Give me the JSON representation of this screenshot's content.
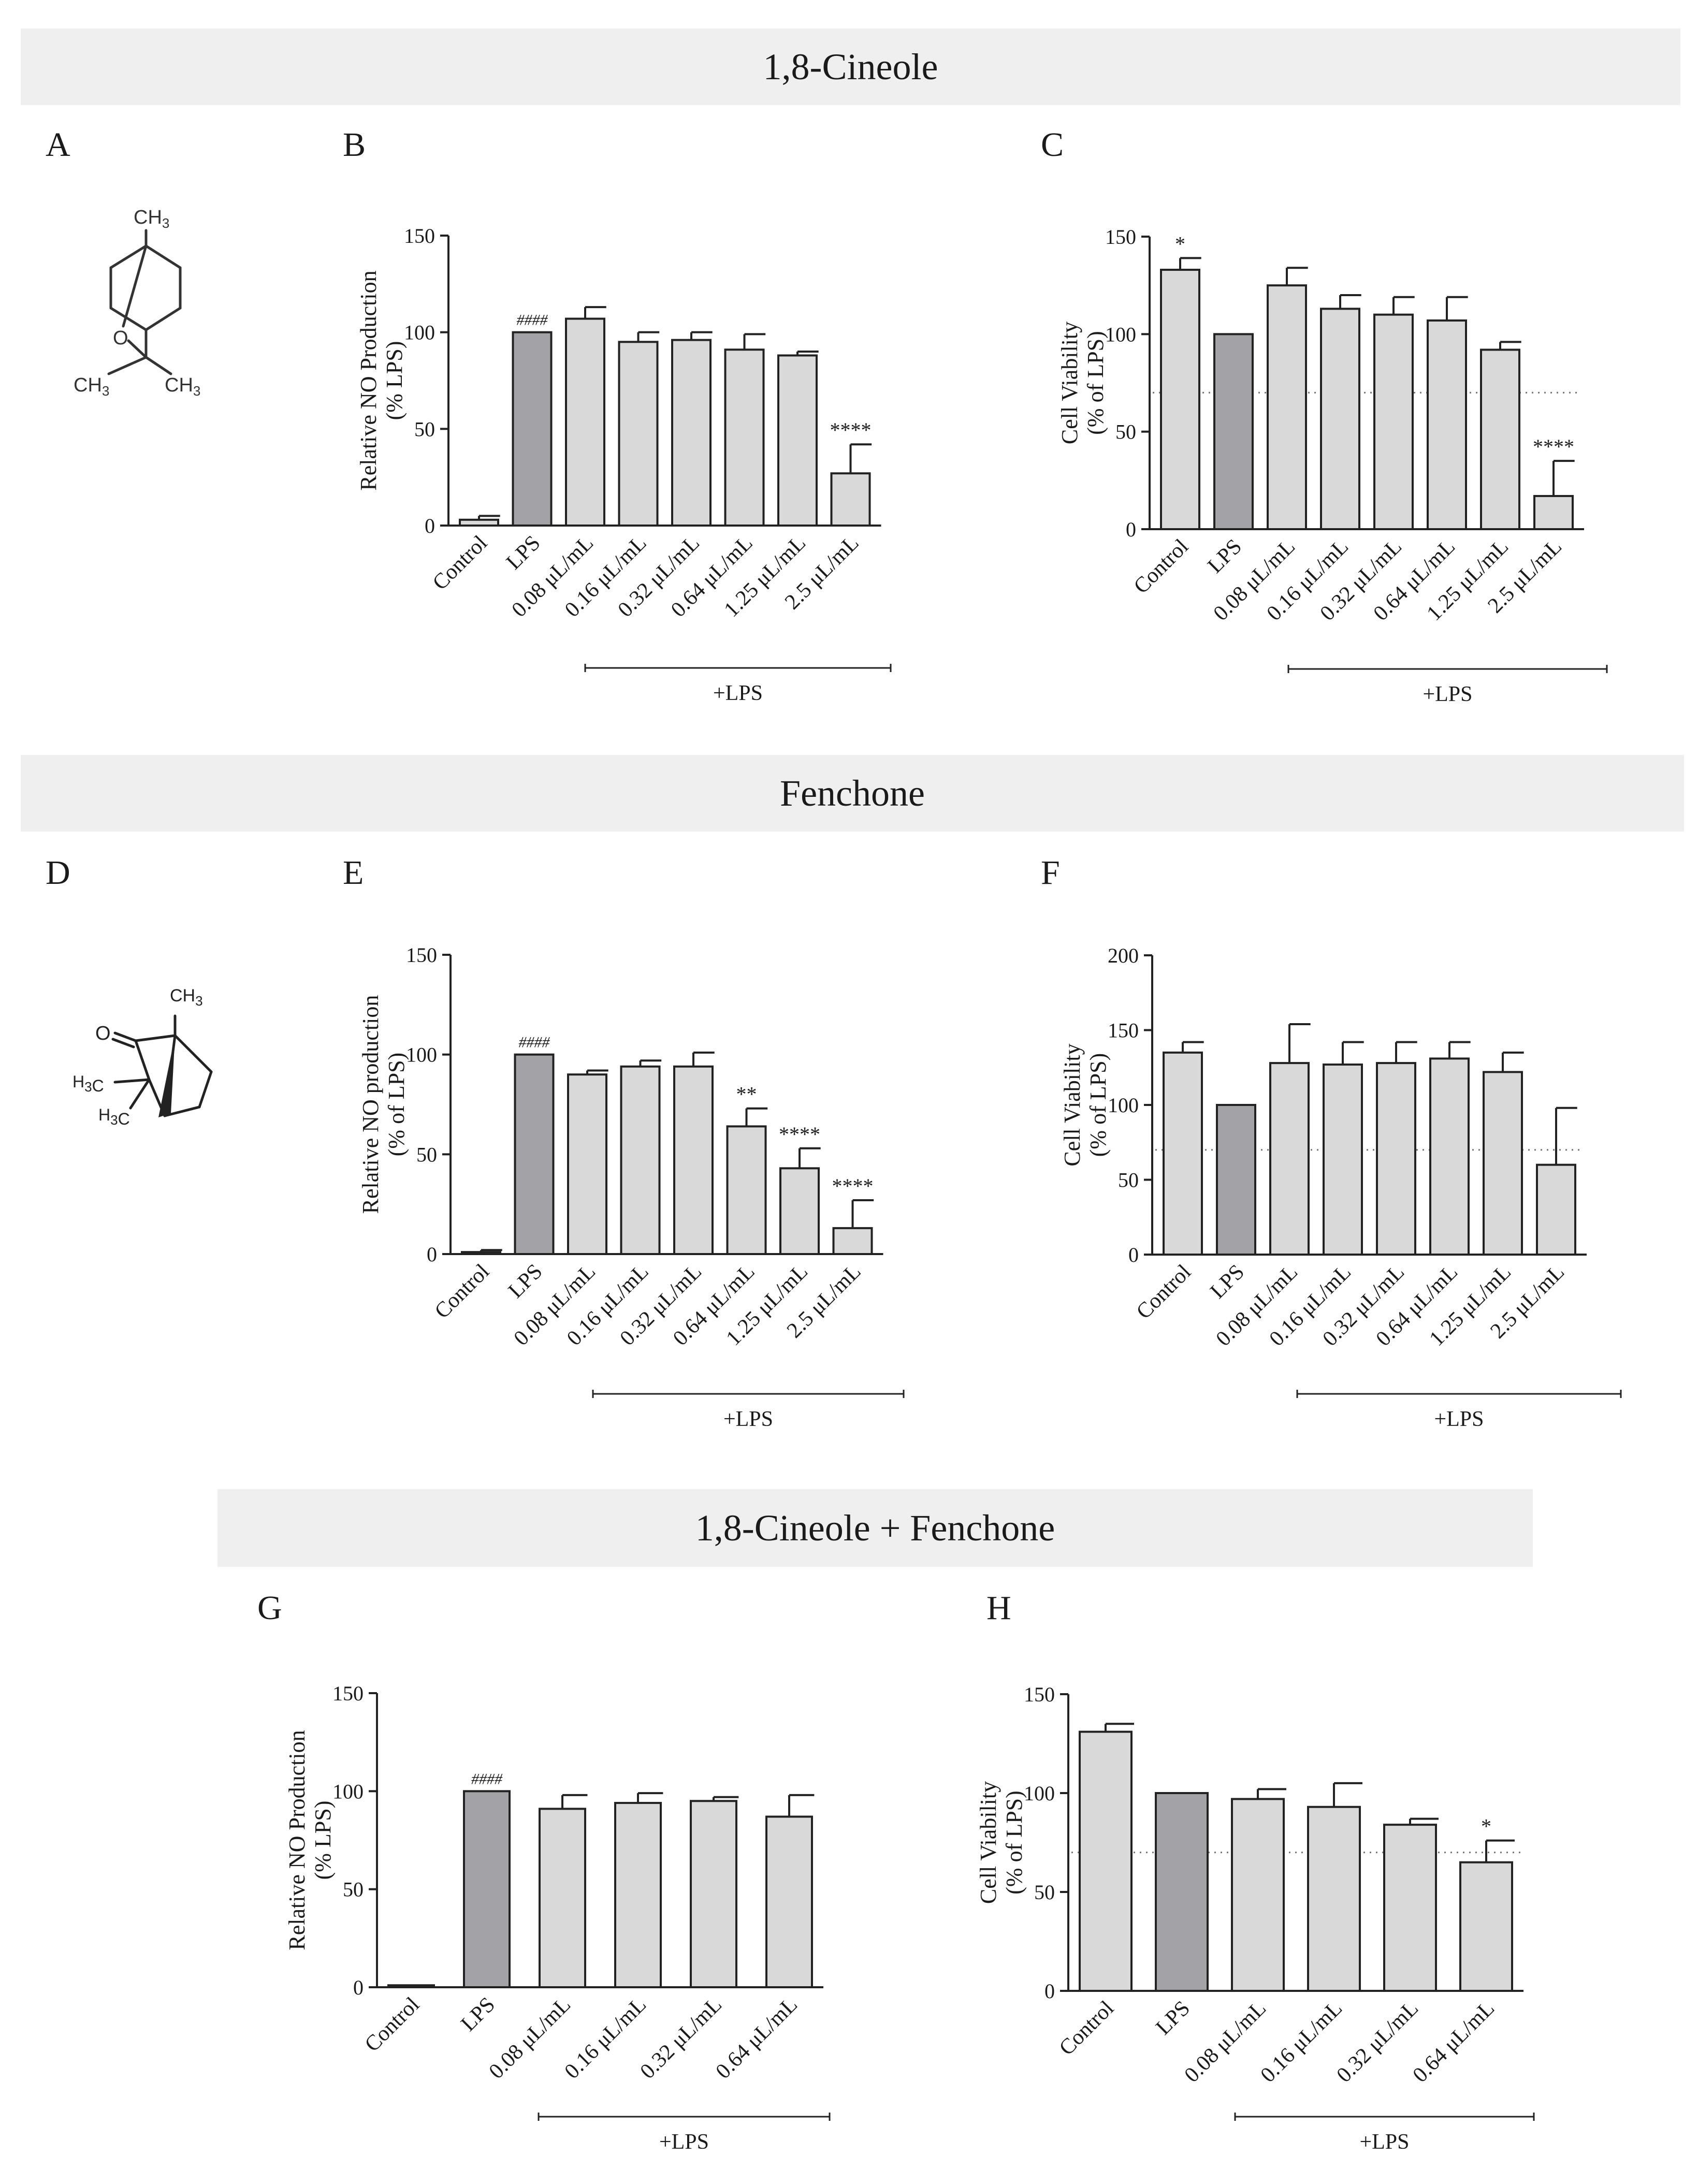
{
  "sections": [
    {
      "title": "1,8-Cineole"
    },
    {
      "title": "Fenchone"
    },
    {
      "title": "1,8-Cineole + Fenchone"
    }
  ],
  "panel_letters": [
    "A",
    "B",
    "C",
    "D",
    "E",
    "F",
    "G",
    "H"
  ],
  "molecules": {
    "cineole": {
      "ch3_top": "CH3",
      "oxygen": "O",
      "ch3_left": "CH3",
      "ch3_right": "CH3"
    },
    "fenchone": {
      "ch3_top": "CH3",
      "oxygen": "O",
      "h3c_upper": "H3C",
      "h3c_lower": "H3C"
    }
  },
  "colors": {
    "bar_light": "#d9d9d9",
    "bar_dark": "#a3a3a7",
    "band": "#efefef",
    "stroke": "#222222"
  },
  "chart_data": [
    {
      "id": "B",
      "type": "bar",
      "title": "",
      "ylabel": [
        "Relative NO Production",
        "(% LPS)"
      ],
      "categories": [
        "Control",
        "LPS",
        "0.08 μL/mL",
        "0.16 μL/mL",
        "0.32 μL/mL",
        "0.64 μL/mL",
        "1.25 μL/mL",
        "2.5 μL/mL"
      ],
      "values": [
        3,
        100,
        107,
        95,
        96,
        91,
        88,
        27
      ],
      "errors": [
        2,
        0,
        6,
        5,
        4,
        8,
        2,
        15
      ],
      "annotations": [
        "",
        "####",
        "",
        "",
        "",
        "",
        "",
        "****"
      ],
      "ylim": [
        0,
        150
      ],
      "ticks": [
        0,
        50,
        100,
        150
      ],
      "group_label": "+LPS",
      "threshold": null
    },
    {
      "id": "C",
      "type": "bar",
      "title": "",
      "ylabel": [
        "Cell Viability",
        "(% of LPS)"
      ],
      "categories": [
        "Control",
        "LPS",
        "0.08 μL/mL",
        "0.16 μL/mL",
        "0.32 μL/mL",
        "0.64 μL/mL",
        "1.25 μL/mL",
        "2.5 μL/mL"
      ],
      "values": [
        133,
        100,
        125,
        113,
        110,
        107,
        92,
        17
      ],
      "errors": [
        6,
        0,
        9,
        7,
        9,
        12,
        4,
        18
      ],
      "annotations": [
        "*",
        "",
        "",
        "",
        "",
        "",
        "",
        "****"
      ],
      "ylim": [
        0,
        150
      ],
      "ticks": [
        0,
        50,
        100,
        150
      ],
      "group_label": "+LPS",
      "threshold": 70
    },
    {
      "id": "E",
      "type": "bar",
      "title": "",
      "ylabel": [
        "Relative NO production",
        "(% of LPS)"
      ],
      "categories": [
        "Control",
        "LPS",
        "0.08 μL/mL",
        "0.16 μL/mL",
        "0.32 μL/mL",
        "0.64 μL/mL",
        "1.25 μL/mL",
        "2.5 μL/mL"
      ],
      "values": [
        1,
        100,
        90,
        94,
        94,
        64,
        43,
        13
      ],
      "errors": [
        1,
        0,
        2,
        3,
        7,
        9,
        10,
        14
      ],
      "annotations": [
        "",
        "####",
        "",
        "",
        "",
        "**",
        "****",
        "****"
      ],
      "ylim": [
        0,
        150
      ],
      "ticks": [
        0,
        50,
        100,
        150
      ],
      "group_label": "+LPS",
      "threshold": null
    },
    {
      "id": "F",
      "type": "bar",
      "title": "",
      "ylabel": [
        "Cell Viability",
        "(% of LPS)"
      ],
      "categories": [
        "Control",
        "LPS",
        "0.08 μL/mL",
        "0.16 μL/mL",
        "0.32 μL/mL",
        "0.64 μL/mL",
        "1.25 μL/mL",
        "2.5 μL/mL"
      ],
      "values": [
        135,
        100,
        128,
        127,
        128,
        131,
        122,
        60
      ],
      "errors": [
        7,
        0,
        26,
        15,
        14,
        11,
        13,
        38
      ],
      "annotations": [
        "",
        "",
        "",
        "",
        "",
        "",
        "",
        ""
      ],
      "ylim": [
        0,
        200
      ],
      "ticks": [
        0,
        50,
        100,
        150,
        200
      ],
      "group_label": "+LPS",
      "threshold": 70
    },
    {
      "id": "G",
      "type": "bar",
      "title": "",
      "ylabel": [
        "Relative NO Production",
        "(% LPS)"
      ],
      "categories": [
        "Control",
        "LPS",
        "0.08 μL/mL",
        "0.16 μL/mL",
        "0.32 μL/mL",
        "0.64 μL/mL"
      ],
      "values": [
        1,
        100,
        91,
        94,
        95,
        87
      ],
      "errors": [
        0,
        0,
        7,
        5,
        2,
        11
      ],
      "annotations": [
        "",
        "####",
        "",
        "",
        "",
        ""
      ],
      "ylim": [
        0,
        150
      ],
      "ticks": [
        0,
        50,
        100,
        150
      ],
      "group_label": "+LPS",
      "threshold": null
    },
    {
      "id": "H",
      "type": "bar",
      "title": "",
      "ylabel": [
        "Cell Viability",
        "(% of LPS)"
      ],
      "categories": [
        "Control",
        "LPS",
        "0.08 μL/mL",
        "0.16 μL/mL",
        "0.32 μL/mL",
        "0.64 μL/mL"
      ],
      "values": [
        131,
        100,
        97,
        93,
        84,
        65
      ],
      "errors": [
        4,
        0,
        5,
        12,
        3,
        11
      ],
      "annotations": [
        "",
        "",
        "",
        "",
        "",
        "*"
      ],
      "ylim": [
        0,
        150
      ],
      "ticks": [
        0,
        50,
        100,
        150
      ],
      "group_label": "+LPS",
      "threshold": 70
    }
  ]
}
